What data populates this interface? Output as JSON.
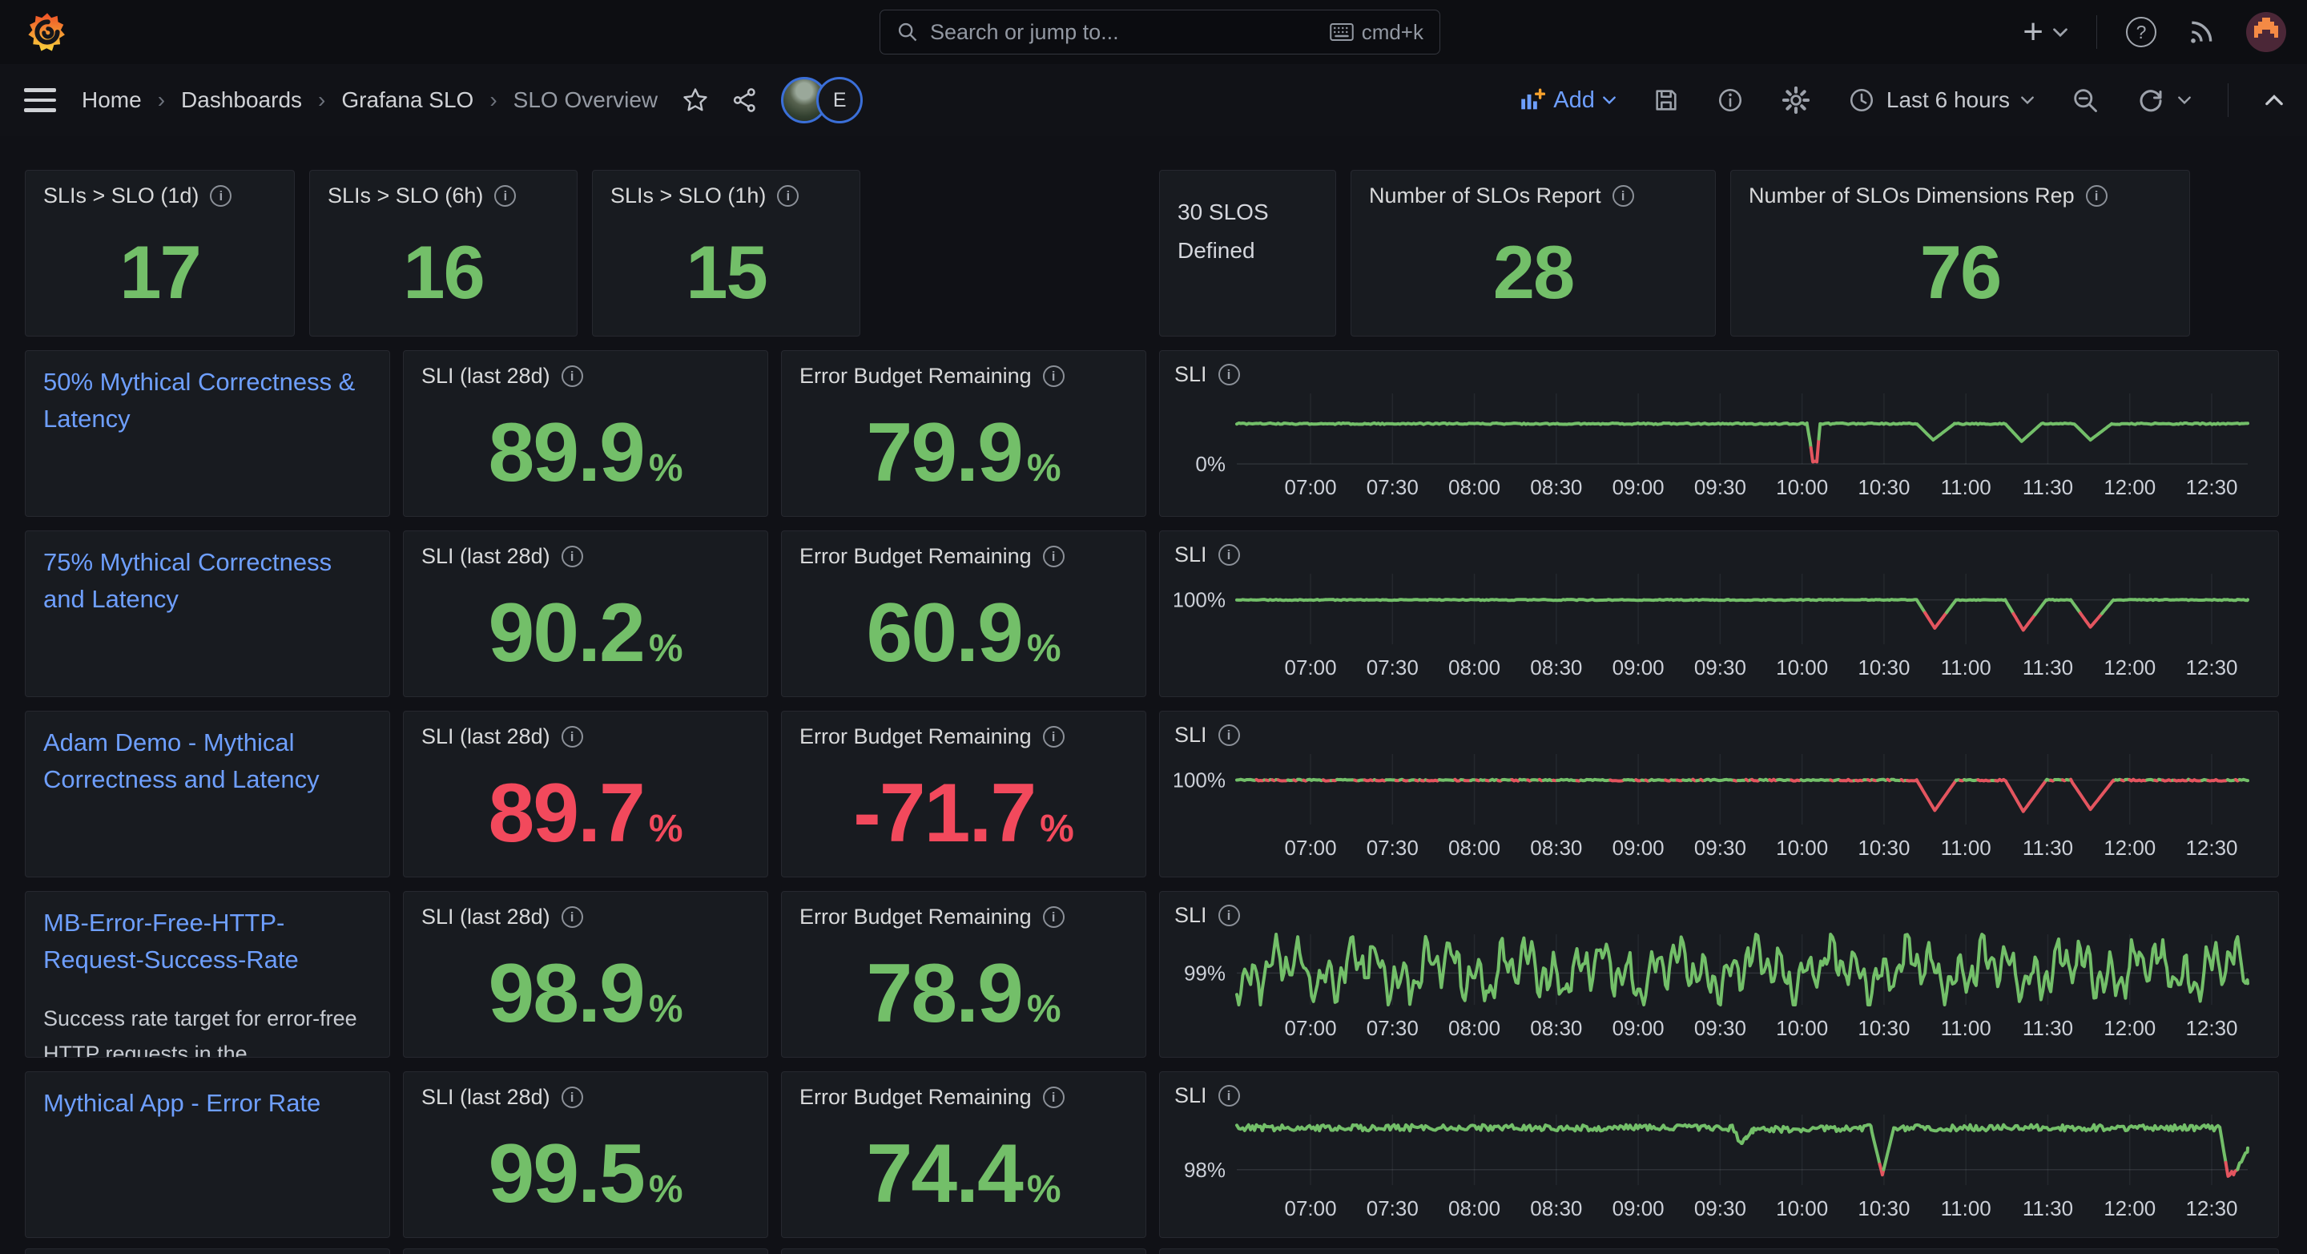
{
  "nav": {
    "search_placeholder": "Search or jump to...",
    "search_shortcut": "cmd+k",
    "plus_label": "+",
    "avatar_badge": "E"
  },
  "toolbar": {
    "breadcrumbs": [
      "Home",
      "Dashboards",
      "Grafana SLO",
      "SLO Overview"
    ],
    "add_label": "Add",
    "time_range": "Last 6 hours"
  },
  "labels": {
    "sli_panel": "SLI (last 28d)",
    "ebr_panel": "Error Budget Remaining",
    "chart_panel": "SLI",
    "percent": "%"
  },
  "colors": {
    "green": "#73bf69",
    "red": "#f2495c",
    "link_blue": "#6e9fff"
  },
  "stats": [
    {
      "title": "SLIs > SLO (1d)",
      "value": "17",
      "color": "#73bf69"
    },
    {
      "title": "SLIs > SLO (6h)",
      "value": "16",
      "color": "#73bf69"
    },
    {
      "title": "SLIs > SLO (1h)",
      "value": "15",
      "color": "#73bf69"
    },
    {
      "text": "30 SLOS Defined"
    },
    {
      "title": "Number of SLOs Report",
      "value": "28",
      "color": "#73bf69"
    },
    {
      "title": "Number of SLOs Dimensions Rep",
      "value": "76",
      "color": "#73bf69"
    }
  ],
  "rows": [
    {
      "title": "50% Mythical Correctness & Latency",
      "description": "",
      "sli": {
        "value": "89.9",
        "color": "#73bf69"
      },
      "ebr": {
        "value": "79.9",
        "color": "#73bf69"
      }
    },
    {
      "title": "75% Mythical Correctness and Latency",
      "description": "",
      "sli": {
        "value": "90.2",
        "color": "#73bf69"
      },
      "ebr": {
        "value": "60.9",
        "color": "#73bf69"
      }
    },
    {
      "title": "Adam Demo - Mythical Correctness and Latency",
      "description": "",
      "sli": {
        "value": "89.7",
        "color": "#f2495c"
      },
      "ebr": {
        "value": "-71.7",
        "color": "#f2495c"
      }
    },
    {
      "title": "MB-Error-Free-HTTP-Request-Success-Rate",
      "description": "Success rate target for error-free HTTP requests in the",
      "sli": {
        "value": "98.9",
        "color": "#73bf69"
      },
      "ebr": {
        "value": "78.9",
        "color": "#73bf69"
      }
    },
    {
      "title": "Mythical App - Error Rate",
      "description": "",
      "sli": {
        "value": "99.5",
        "color": "#73bf69"
      },
      "ebr": {
        "value": "74.4",
        "color": "#73bf69"
      }
    }
  ],
  "chart_data": [
    {
      "type": "line",
      "title": "SLI",
      "x_domain": [
        6.55,
        12.72
      ],
      "x_ticks": [
        {
          "label": "07:00",
          "t": 7
        },
        {
          "label": "07:30",
          "t": 7.5
        },
        {
          "label": "08:00",
          "t": 8
        },
        {
          "label": "08:30",
          "t": 8.5
        },
        {
          "label": "09:00",
          "t": 9
        },
        {
          "label": "09:30",
          "t": 9.5
        },
        {
          "label": "10:00",
          "t": 10
        },
        {
          "label": "10:30",
          "t": 10.5
        },
        {
          "label": "11:00",
          "t": 11
        },
        {
          "label": "11:30",
          "t": 11.5
        },
        {
          "label": "12:00",
          "t": 12
        },
        {
          "label": "12:30",
          "t": 12.5
        }
      ],
      "ylim": [
        0,
        100
      ],
      "y_tick": {
        "label": "0%",
        "value": 0
      },
      "threshold": 18,
      "series": [
        [
          6.55,
          57
        ],
        [
          10.03,
          57
        ],
        [
          10.05,
          30
        ],
        [
          10.065,
          3
        ],
        [
          10.09,
          3
        ],
        [
          10.11,
          57
        ],
        [
          10.7,
          57
        ],
        [
          10.8,
          34
        ],
        [
          10.93,
          57
        ],
        [
          11.24,
          57
        ],
        [
          11.34,
          32
        ],
        [
          11.46,
          57
        ],
        [
          11.66,
          57
        ],
        [
          11.76,
          34
        ],
        [
          11.89,
          57
        ],
        [
          12.72,
          57
        ]
      ],
      "noise": {
        "type": "jitter",
        "amp": 1.0
      },
      "color_ok": "#73bf69",
      "color_bad": "#e4555f",
      "grid": true
    },
    {
      "type": "line",
      "title": "SLI",
      "x_domain": [
        6.55,
        12.72
      ],
      "x_ticks": [
        {
          "label": "07:00",
          "t": 7
        },
        {
          "label": "07:30",
          "t": 7.5
        },
        {
          "label": "08:00",
          "t": 8
        },
        {
          "label": "08:30",
          "t": 8.5
        },
        {
          "label": "09:00",
          "t": 9
        },
        {
          "label": "09:30",
          "t": 9.5
        },
        {
          "label": "10:00",
          "t": 10
        },
        {
          "label": "10:30",
          "t": 10.5
        },
        {
          "label": "11:00",
          "t": 11
        },
        {
          "label": "11:30",
          "t": 11.5
        },
        {
          "label": "12:00",
          "t": 12
        },
        {
          "label": "12:30",
          "t": 12.5
        }
      ],
      "ylim": [
        56,
        126
      ],
      "y_tick": {
        "label": "100%",
        "value": 100
      },
      "threshold": 85,
      "series": [
        [
          6.55,
          100
        ],
        [
          10.7,
          100
        ],
        [
          10.81,
          72
        ],
        [
          10.94,
          100
        ],
        [
          11.24,
          100
        ],
        [
          11.35,
          70
        ],
        [
          11.49,
          100
        ],
        [
          11.64,
          100
        ],
        [
          11.76,
          73
        ],
        [
          11.9,
          100
        ],
        [
          12.72,
          100
        ]
      ],
      "noise": {
        "type": "jitter",
        "amp": 0.5
      },
      "color_ok": "#73bf69",
      "color_bad": "#e4555f",
      "grid": true
    },
    {
      "type": "line",
      "title": "SLI",
      "x_domain": [
        6.55,
        12.72
      ],
      "x_ticks": [
        {
          "label": "07:00",
          "t": 7
        },
        {
          "label": "07:30",
          "t": 7.5
        },
        {
          "label": "08:00",
          "t": 8
        },
        {
          "label": "08:30",
          "t": 8.5
        },
        {
          "label": "09:00",
          "t": 9
        },
        {
          "label": "09:30",
          "t": 9.5
        },
        {
          "label": "10:00",
          "t": 10
        },
        {
          "label": "10:30",
          "t": 10.5
        },
        {
          "label": "11:00",
          "t": 11
        },
        {
          "label": "11:30",
          "t": 11.5
        },
        {
          "label": "12:00",
          "t": 12
        },
        {
          "label": "12:30",
          "t": 12.5
        }
      ],
      "ylim": [
        56,
        126
      ],
      "y_tick": {
        "label": "100%",
        "value": 100
      },
      "threshold": 99.6,
      "series": [
        [
          6.55,
          100
        ],
        [
          10.7,
          100
        ],
        [
          10.81,
          70
        ],
        [
          10.94,
          100
        ],
        [
          11.24,
          100
        ],
        [
          11.35,
          69
        ],
        [
          11.49,
          100
        ],
        [
          11.64,
          100
        ],
        [
          11.76,
          71
        ],
        [
          11.9,
          100
        ],
        [
          12.72,
          100
        ]
      ],
      "noise": {
        "type": "jitter",
        "amp": 0.8
      },
      "color_ok": "#73bf69",
      "color_bad": "#e4555f",
      "grid": true
    },
    {
      "type": "line",
      "title": "SLI",
      "x_domain": [
        6.55,
        12.72
      ],
      "x_ticks": [
        {
          "label": "07:00",
          "t": 7
        },
        {
          "label": "07:30",
          "t": 7.5
        },
        {
          "label": "08:00",
          "t": 8
        },
        {
          "label": "08:30",
          "t": 8.5
        },
        {
          "label": "09:00",
          "t": 9
        },
        {
          "label": "09:30",
          "t": 9.5
        },
        {
          "label": "10:00",
          "t": 10
        },
        {
          "label": "10:30",
          "t": 10.5
        },
        {
          "label": "11:00",
          "t": 11
        },
        {
          "label": "11:30",
          "t": 11.5
        },
        {
          "label": "12:00",
          "t": 12
        },
        {
          "label": "12:30",
          "t": 12.5
        }
      ],
      "ylim": [
        98.46,
        99.66
      ],
      "y_tick": {
        "label": "99%",
        "value": 99
      },
      "threshold": 0,
      "series": [
        [
          6.55,
          99.05
        ],
        [
          12.72,
          99.05
        ]
      ],
      "noise": {
        "type": "wander",
        "amp": 0.3
      },
      "color_ok": "#73bf69",
      "color_bad": "#e4555f",
      "grid": true
    },
    {
      "type": "line",
      "title": "SLI",
      "x_domain": [
        6.55,
        12.72
      ],
      "x_ticks": [
        {
          "label": "07:00",
          "t": 7
        },
        {
          "label": "07:30",
          "t": 7.5
        },
        {
          "label": "08:00",
          "t": 8
        },
        {
          "label": "08:30",
          "t": 8.5
        },
        {
          "label": "09:00",
          "t": 9
        },
        {
          "label": "09:30",
          "t": 9.5
        },
        {
          "label": "10:00",
          "t": 10
        },
        {
          "label": "10:30",
          "t": 10.5
        },
        {
          "label": "11:00",
          "t": 11
        },
        {
          "label": "11:30",
          "t": 11.5
        },
        {
          "label": "12:00",
          "t": 12
        },
        {
          "label": "12:30",
          "t": 12.5
        }
      ],
      "ylim": [
        97.65,
        99.25
      ],
      "y_tick": {
        "label": "98%",
        "value": 98
      },
      "threshold": 98,
      "series": [
        [
          6.55,
          98.95
        ],
        [
          9.58,
          98.95
        ],
        [
          9.63,
          98.55
        ],
        [
          9.66,
          98.75
        ],
        [
          9.7,
          98.9
        ],
        [
          10.42,
          98.95
        ],
        [
          10.49,
          97.88
        ],
        [
          10.56,
          98.95
        ],
        [
          12.55,
          98.95
        ],
        [
          12.6,
          97.85
        ],
        [
          12.64,
          97.95
        ],
        [
          12.72,
          98.45
        ]
      ],
      "noise": {
        "type": "jitter",
        "amp": 0.07
      },
      "color_ok": "#73bf69",
      "color_bad": "#e4555f",
      "grid": true
    }
  ]
}
